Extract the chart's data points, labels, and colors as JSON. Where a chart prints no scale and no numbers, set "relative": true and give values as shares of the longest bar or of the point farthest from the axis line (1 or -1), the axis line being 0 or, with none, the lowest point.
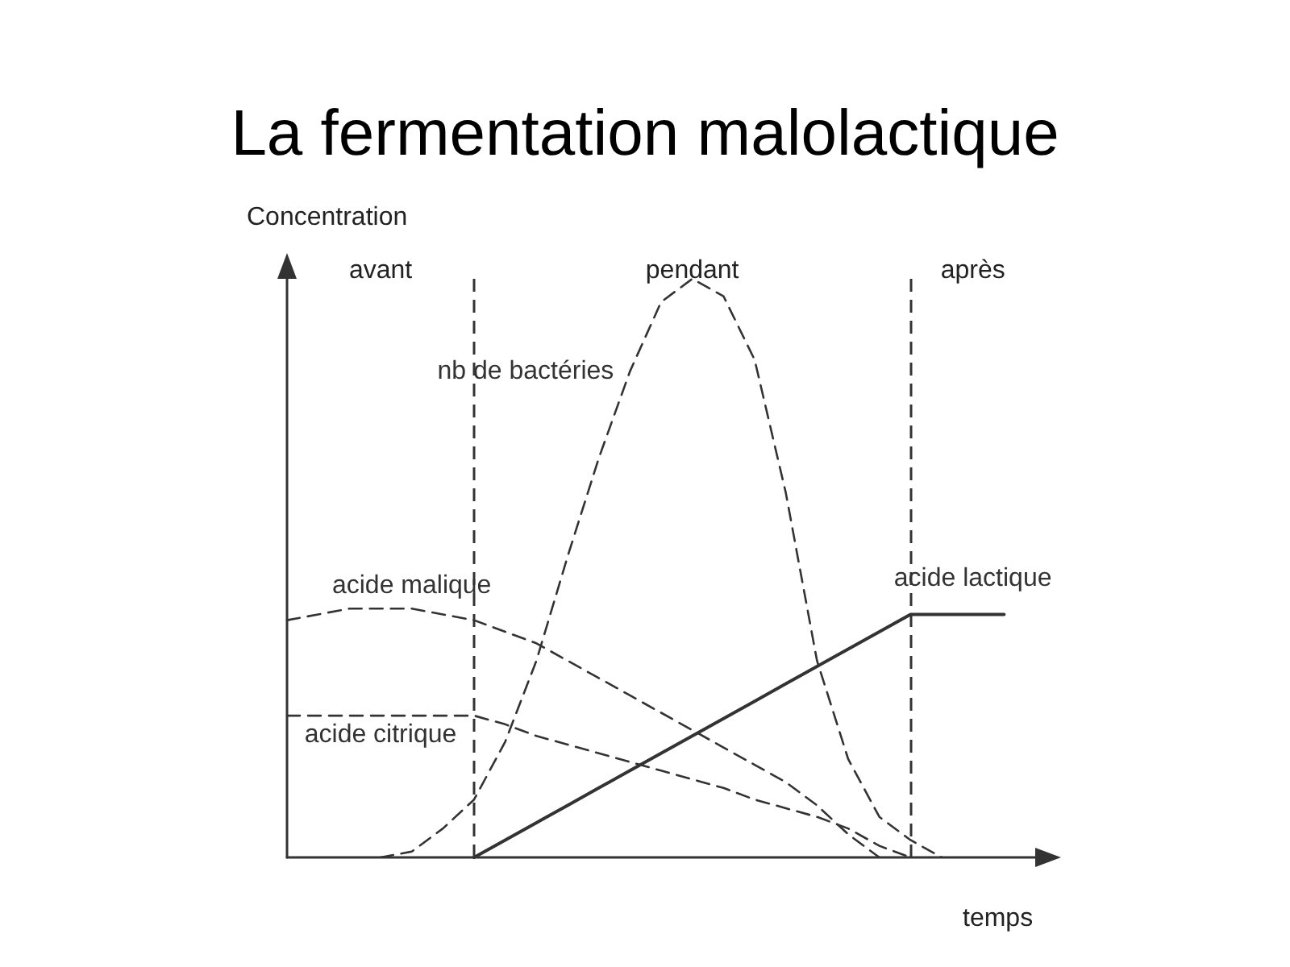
{
  "chart_data": {
    "type": "line",
    "title": "La fermentation malolactique",
    "ylabel": "Concentration",
    "xlabel": "temps",
    "relative": true,
    "grid": false,
    "legend": false,
    "categories": [
      null,
      null,
      null,
      null,
      null,
      null,
      null,
      null,
      null,
      null,
      null,
      null,
      null,
      null,
      null,
      null,
      null,
      null,
      null,
      null,
      null,
      null,
      null,
      null,
      null
    ],
    "series": [
      {
        "name": "nb de bactéries",
        "color": "#333333",
        "line_style": "dashed",
        "values": [
          null,
          null,
          null,
          0,
          0.01,
          0.05,
          0.1,
          0.2,
          0.34,
          0.52,
          0.69,
          0.84,
          0.96,
          1,
          0.97,
          0.86,
          0.63,
          0.34,
          0.17,
          0.07,
          0.03,
          0,
          null,
          null,
          null
        ]
      },
      {
        "name": "acide malique",
        "color": "#333333",
        "line_style": "dashed",
        "values": [
          0.41,
          0.42,
          0.43,
          0.43,
          0.43,
          0.42,
          0.41,
          0.39,
          0.37,
          0.34,
          0.31,
          0.28,
          0.25,
          0.22,
          0.19,
          0.16,
          0.13,
          0.09,
          0.04,
          0,
          null,
          null,
          null,
          null,
          null
        ]
      },
      {
        "name": "acide citrique",
        "color": "#333333",
        "line_style": "dashed",
        "values": [
          0.245,
          0.245,
          0.245,
          0.245,
          0.245,
          0.245,
          0.245,
          0.23,
          0.21,
          0.195,
          0.18,
          0.165,
          0.15,
          0.135,
          0.12,
          0.1,
          0.085,
          0.07,
          0.05,
          0.02,
          0,
          null,
          null,
          null,
          null
        ]
      },
      {
        "name": "acide lactique",
        "color": "#333333",
        "line_style": "solid",
        "values": [
          null,
          null,
          null,
          null,
          null,
          null,
          0,
          0.03,
          0.06,
          0.09,
          0.12,
          0.15,
          0.18,
          0.21,
          0.24,
          0.27,
          0.3,
          0.33,
          0.36,
          0.39,
          0.42,
          0.42,
          0.42,
          0.42,
          null
        ]
      }
    ],
    "annotations": [
      "avant",
      "pendant",
      "après"
    ]
  }
}
